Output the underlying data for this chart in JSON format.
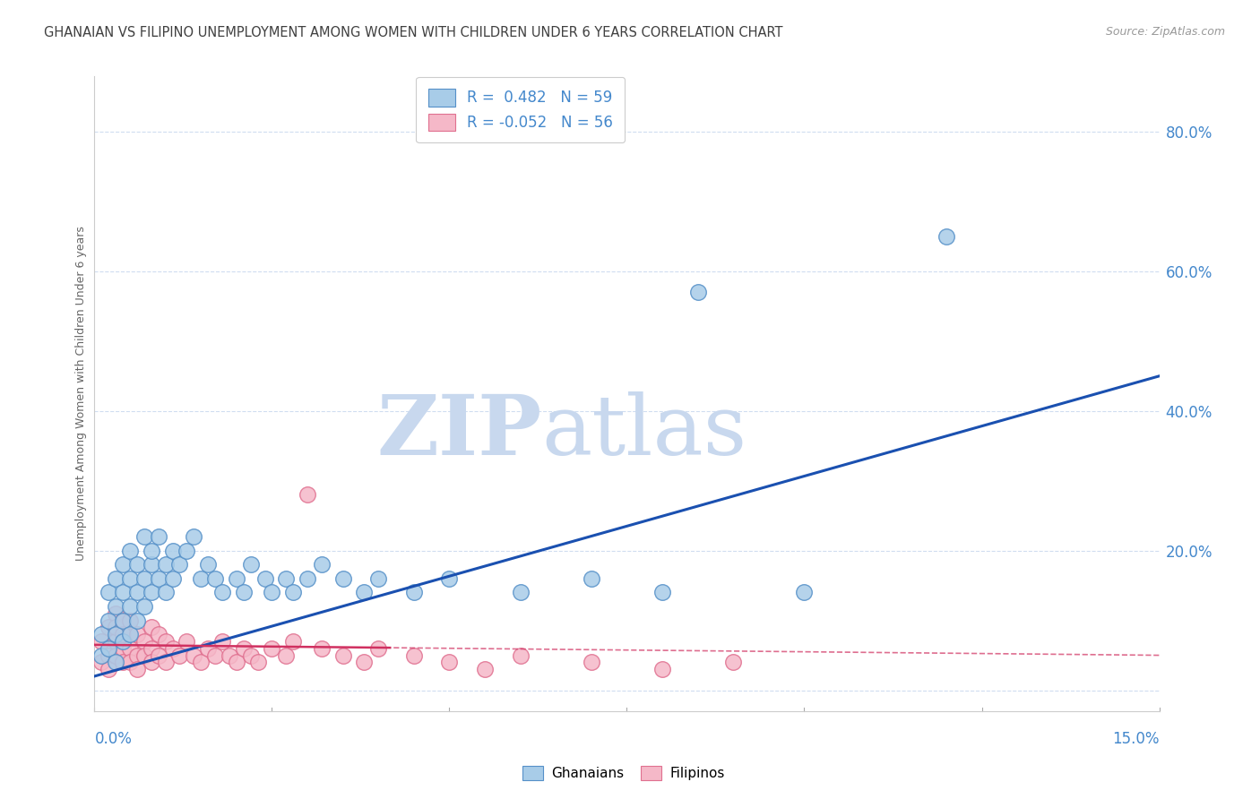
{
  "title": "GHANAIAN VS FILIPINO UNEMPLOYMENT AMONG WOMEN WITH CHILDREN UNDER 6 YEARS CORRELATION CHART",
  "source": "Source: ZipAtlas.com",
  "ylabel": "Unemployment Among Women with Children Under 6 years",
  "xmin": 0.0,
  "xmax": 0.15,
  "ymin": -0.03,
  "ymax": 0.88,
  "yticks": [
    0.0,
    0.2,
    0.4,
    0.6,
    0.8
  ],
  "ytick_labels": [
    "",
    "20.0%",
    "40.0%",
    "60.0%",
    "80.0%"
  ],
  "xtick_left_label": "0.0%",
  "xtick_right_label": "15.0%",
  "ghanaian_color": "#a8cce8",
  "ghanaian_edge": "#5590c8",
  "filipino_color": "#f5b8c8",
  "filipino_edge": "#e07090",
  "trend_blue": "#1a50b0",
  "trend_pink": "#d03060",
  "grid_color": "#d0ddf0",
  "title_color": "#404040",
  "axis_color": "#4488cc",
  "watermark_color": "#dce8f4",
  "R_gh": 0.482,
  "N_gh": 59,
  "R_fi": -0.052,
  "N_fi": 56,
  "watermark_zip": "ZIP",
  "watermark_atlas": "atlas",
  "background": "#ffffff",
  "ghanaian_x": [
    0.001,
    0.001,
    0.002,
    0.002,
    0.002,
    0.003,
    0.003,
    0.003,
    0.003,
    0.004,
    0.004,
    0.004,
    0.004,
    0.005,
    0.005,
    0.005,
    0.005,
    0.006,
    0.006,
    0.006,
    0.007,
    0.007,
    0.007,
    0.008,
    0.008,
    0.008,
    0.009,
    0.009,
    0.01,
    0.01,
    0.011,
    0.011,
    0.012,
    0.013,
    0.014,
    0.015,
    0.016,
    0.017,
    0.018,
    0.02,
    0.021,
    0.022,
    0.024,
    0.025,
    0.027,
    0.028,
    0.03,
    0.032,
    0.035,
    0.038,
    0.04,
    0.045,
    0.05,
    0.06,
    0.07,
    0.08,
    0.085,
    0.1,
    0.12
  ],
  "ghanaian_y": [
    0.05,
    0.08,
    0.06,
    0.1,
    0.14,
    0.08,
    0.12,
    0.16,
    0.04,
    0.1,
    0.14,
    0.07,
    0.18,
    0.12,
    0.16,
    0.08,
    0.2,
    0.14,
    0.1,
    0.18,
    0.16,
    0.12,
    0.22,
    0.18,
    0.14,
    0.2,
    0.16,
    0.22,
    0.14,
    0.18,
    0.2,
    0.16,
    0.18,
    0.2,
    0.22,
    0.16,
    0.18,
    0.16,
    0.14,
    0.16,
    0.14,
    0.18,
    0.16,
    0.14,
    0.16,
    0.14,
    0.16,
    0.18,
    0.16,
    0.14,
    0.16,
    0.14,
    0.16,
    0.14,
    0.16,
    0.14,
    0.57,
    0.14,
    0.65
  ],
  "filipino_x": [
    0.001,
    0.001,
    0.002,
    0.002,
    0.002,
    0.003,
    0.003,
    0.003,
    0.003,
    0.004,
    0.004,
    0.004,
    0.004,
    0.005,
    0.005,
    0.005,
    0.006,
    0.006,
    0.006,
    0.007,
    0.007,
    0.008,
    0.008,
    0.008,
    0.009,
    0.009,
    0.01,
    0.01,
    0.011,
    0.012,
    0.013,
    0.014,
    0.015,
    0.016,
    0.017,
    0.018,
    0.019,
    0.02,
    0.021,
    0.022,
    0.023,
    0.025,
    0.027,
    0.028,
    0.03,
    0.032,
    0.035,
    0.038,
    0.04,
    0.045,
    0.05,
    0.055,
    0.06,
    0.07,
    0.08,
    0.09
  ],
  "filipino_y": [
    0.04,
    0.07,
    0.05,
    0.09,
    0.03,
    0.07,
    0.11,
    0.05,
    0.09,
    0.06,
    0.1,
    0.04,
    0.08,
    0.06,
    0.1,
    0.04,
    0.08,
    0.05,
    0.03,
    0.07,
    0.05,
    0.09,
    0.06,
    0.04,
    0.08,
    0.05,
    0.07,
    0.04,
    0.06,
    0.05,
    0.07,
    0.05,
    0.04,
    0.06,
    0.05,
    0.07,
    0.05,
    0.04,
    0.06,
    0.05,
    0.04,
    0.06,
    0.05,
    0.07,
    0.28,
    0.06,
    0.05,
    0.04,
    0.06,
    0.05,
    0.04,
    0.03,
    0.05,
    0.04,
    0.03,
    0.04
  ]
}
